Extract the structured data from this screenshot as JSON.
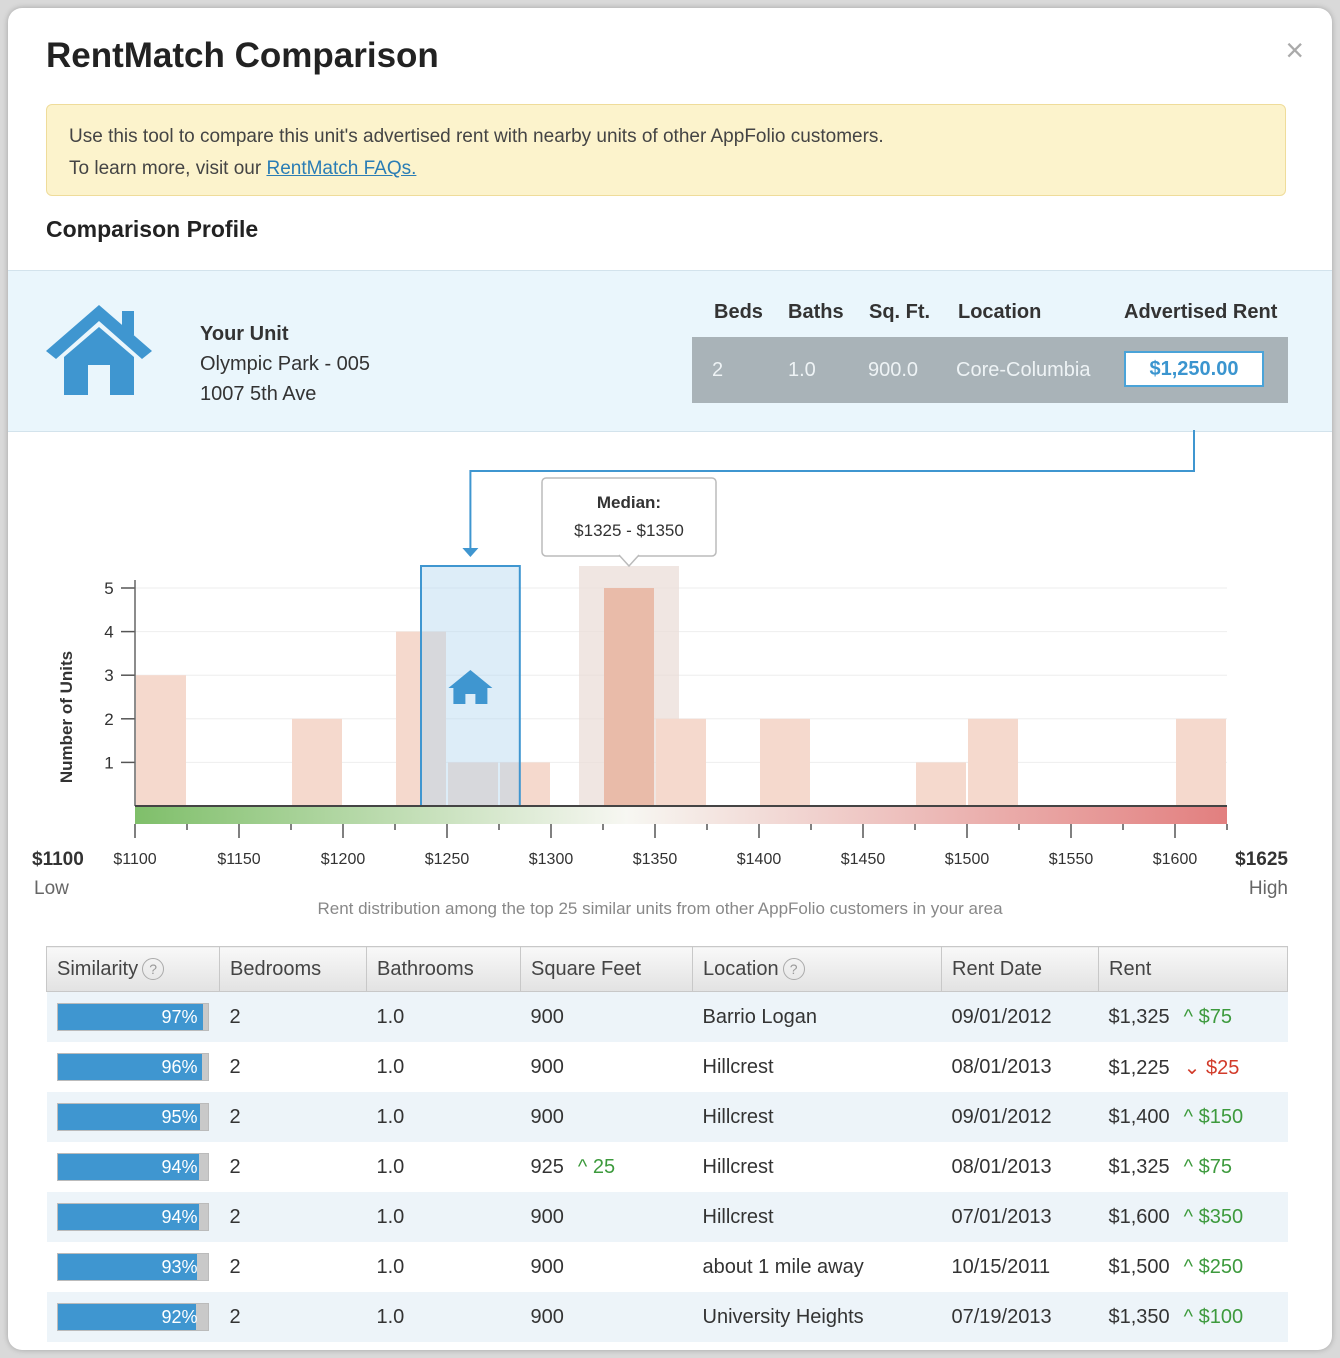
{
  "modal": {
    "title": "RentMatch Comparison",
    "close": "×"
  },
  "notice": {
    "line1": "Use this tool to compare this unit's advertised rent with nearby units of other AppFolio customers.",
    "line2_prefix": "To learn more, visit our ",
    "link_text": "RentMatch FAQs."
  },
  "profile": {
    "section_title": "Comparison Profile",
    "unit_label": "Your Unit",
    "unit_name": "Olympic Park - 005",
    "address": "1007 5th Ave",
    "headers": {
      "beds": "Beds",
      "baths": "Baths",
      "sqft": "Sq. Ft.",
      "location": "Location",
      "rent": "Advertised Rent"
    },
    "values": {
      "beds": "2",
      "baths": "1.0",
      "sqft": "900.0",
      "location": "Core-Columbia",
      "rent": "$1,250.00"
    }
  },
  "chart_data": {
    "type": "bar",
    "ylabel": "Number of Units",
    "xlabel": "Rent distribution among the top 25 similar units from other AppFolio customers in your area",
    "y_ticks": [
      "1",
      "2",
      "3",
      "4",
      "5"
    ],
    "ylim": [
      0,
      5
    ],
    "x_ticks": [
      "$1100",
      "$1150",
      "$1200",
      "$1250",
      "$1300",
      "$1350",
      "$1400",
      "$1450",
      "$1500",
      "$1550",
      "$1600"
    ],
    "xlim": [
      1100,
      1625
    ],
    "low_label": "$1100",
    "low_word": "Low",
    "high_label": "$1625",
    "high_word": "High",
    "bins": [
      {
        "start": 1100,
        "end": 1125,
        "count": 3
      },
      {
        "start": 1175,
        "end": 1200,
        "count": 2
      },
      {
        "start": 1225,
        "end": 1250,
        "count": 4
      },
      {
        "start": 1250,
        "end": 1275,
        "count": 1
      },
      {
        "start": 1275,
        "end": 1300,
        "count": 1
      },
      {
        "start": 1325,
        "end": 1350,
        "count": 5
      },
      {
        "start": 1350,
        "end": 1375,
        "count": 2
      },
      {
        "start": 1400,
        "end": 1425,
        "count": 2
      },
      {
        "start": 1475,
        "end": 1500,
        "count": 1
      },
      {
        "start": 1500,
        "end": 1525,
        "count": 2
      },
      {
        "start": 1600,
        "end": 1625,
        "count": 2
      }
    ],
    "median_title": "Median:",
    "median_range": "$1325 - $1350",
    "median_bin": [
      1325,
      1350
    ],
    "your_unit_bin": [
      1237.5,
      1285
    ],
    "your_rent": 1250
  },
  "table": {
    "headers": [
      "Similarity",
      "Bedrooms",
      "Bathrooms",
      "Square Feet",
      "Location",
      "Rent Date",
      "Rent"
    ],
    "help": "?",
    "rows": [
      {
        "similarity": "97%",
        "sim_value": 97,
        "bedrooms": "2",
        "bathrooms": "1.0",
        "sqft": "900",
        "sqft_change": "",
        "sqft_dir": "",
        "location": "Barrio Logan",
        "rent_date": "09/01/2012",
        "rent": "$1,325",
        "rent_change": "$75",
        "rent_dir": "up"
      },
      {
        "similarity": "96%",
        "sim_value": 96,
        "bedrooms": "2",
        "bathrooms": "1.0",
        "sqft": "900",
        "sqft_change": "",
        "sqft_dir": "",
        "location": "Hillcrest",
        "rent_date": "08/01/2013",
        "rent": "$1,225",
        "rent_change": "$25",
        "rent_dir": "down"
      },
      {
        "similarity": "95%",
        "sim_value": 95,
        "bedrooms": "2",
        "bathrooms": "1.0",
        "sqft": "900",
        "sqft_change": "",
        "sqft_dir": "",
        "location": "Hillcrest",
        "rent_date": "09/01/2012",
        "rent": "$1,400",
        "rent_change": "$150",
        "rent_dir": "up"
      },
      {
        "similarity": "94%",
        "sim_value": 94,
        "bedrooms": "2",
        "bathrooms": "1.0",
        "sqft": "925",
        "sqft_change": "25",
        "sqft_dir": "up",
        "location": "Hillcrest",
        "rent_date": "08/01/2013",
        "rent": "$1,325",
        "rent_change": "$75",
        "rent_dir": "up"
      },
      {
        "similarity": "94%",
        "sim_value": 94,
        "bedrooms": "2",
        "bathrooms": "1.0",
        "sqft": "900",
        "sqft_change": "",
        "sqft_dir": "",
        "location": "Hillcrest",
        "rent_date": "07/01/2013",
        "rent": "$1,600",
        "rent_change": "$350",
        "rent_dir": "up"
      },
      {
        "similarity": "93%",
        "sim_value": 93,
        "bedrooms": "2",
        "bathrooms": "1.0",
        "sqft": "900",
        "sqft_change": "",
        "sqft_dir": "",
        "location": "about 1 mile away",
        "rent_date": "10/15/2011",
        "rent": "$1,500",
        "rent_change": "$250",
        "rent_dir": "up"
      },
      {
        "similarity": "92%",
        "sim_value": 92,
        "bedrooms": "2",
        "bathrooms": "1.0",
        "sqft": "900",
        "sqft_change": "",
        "sqft_dir": "",
        "location": "University Heights",
        "rent_date": "07/19/2013",
        "rent": "$1,350",
        "rent_change": "$100",
        "rent_dir": "up"
      }
    ]
  },
  "colors": {
    "accent": "#3f96d0",
    "bar": "#f3d5c8",
    "median_bar": "#e9bba9",
    "up": "#3d9a3d",
    "down": "#d23b2a"
  }
}
